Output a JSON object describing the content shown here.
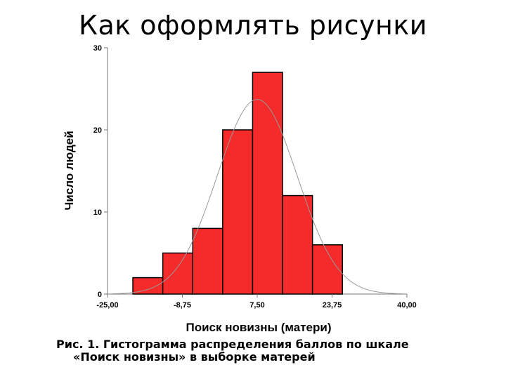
{
  "slide": {
    "title": "Как оформлять рисунки"
  },
  "caption": {
    "line1": "Рис. 1. Гистограмма распределения баллов по шкале",
    "line2": "«Поиск новизны» в выборке матерей"
  },
  "chart_data": {
    "type": "bar",
    "subtype": "histogram",
    "xlabel": "Поиск новизны (матери)",
    "ylabel": "Число людей",
    "xlim": [
      -25,
      40
    ],
    "ylim": [
      0,
      30
    ],
    "x_ticks": [
      -25,
      -8.75,
      7.5,
      23.75,
      40
    ],
    "x_tick_labels": [
      "-25,00",
      "-8,75",
      "7,50",
      "23,75",
      "40,00"
    ],
    "y_ticks": [
      0,
      10,
      20,
      30
    ],
    "y_tick_labels": [
      "0",
      "10",
      "20",
      "30"
    ],
    "bins": [
      {
        "from": -19.5,
        "to": -13.0,
        "count": 2
      },
      {
        "from": -13.0,
        "to": -6.5,
        "count": 5
      },
      {
        "from": -6.5,
        "to": 0.0,
        "count": 8
      },
      {
        "from": 0.0,
        "to": 6.5,
        "count": 20
      },
      {
        "from": 6.5,
        "to": 13.0,
        "count": 27
      },
      {
        "from": 13.0,
        "to": 19.5,
        "count": 12
      },
      {
        "from": 19.5,
        "to": 26.0,
        "count": 6
      }
    ],
    "normal_curve": {
      "mean": 7.5,
      "sd": 8.7,
      "peak": 23.7
    },
    "bar_color": "#f52a2a",
    "bar_edge_color": "#000000",
    "curve_color": "#9a9a9a",
    "grid": false
  }
}
